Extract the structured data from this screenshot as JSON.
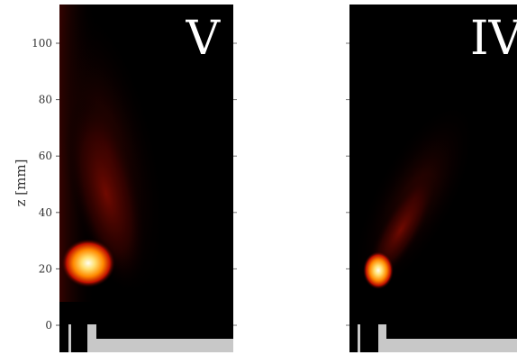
{
  "chart_data": {
    "type": "heatmap",
    "ylabel": "z [mm]",
    "ylim": [
      -10,
      113
    ],
    "yticks": [
      0,
      20,
      40,
      60,
      80,
      100
    ],
    "grid": false,
    "panels": [
      {
        "label": "V"
      },
      {
        "label": "IV"
      }
    ],
    "colors": {
      "background": "#000000",
      "hot_core": "#fffbe0",
      "hot_mid": "#ffb020",
      "hot_outer": "#c80000",
      "geometry": "#c8c8c8"
    }
  }
}
